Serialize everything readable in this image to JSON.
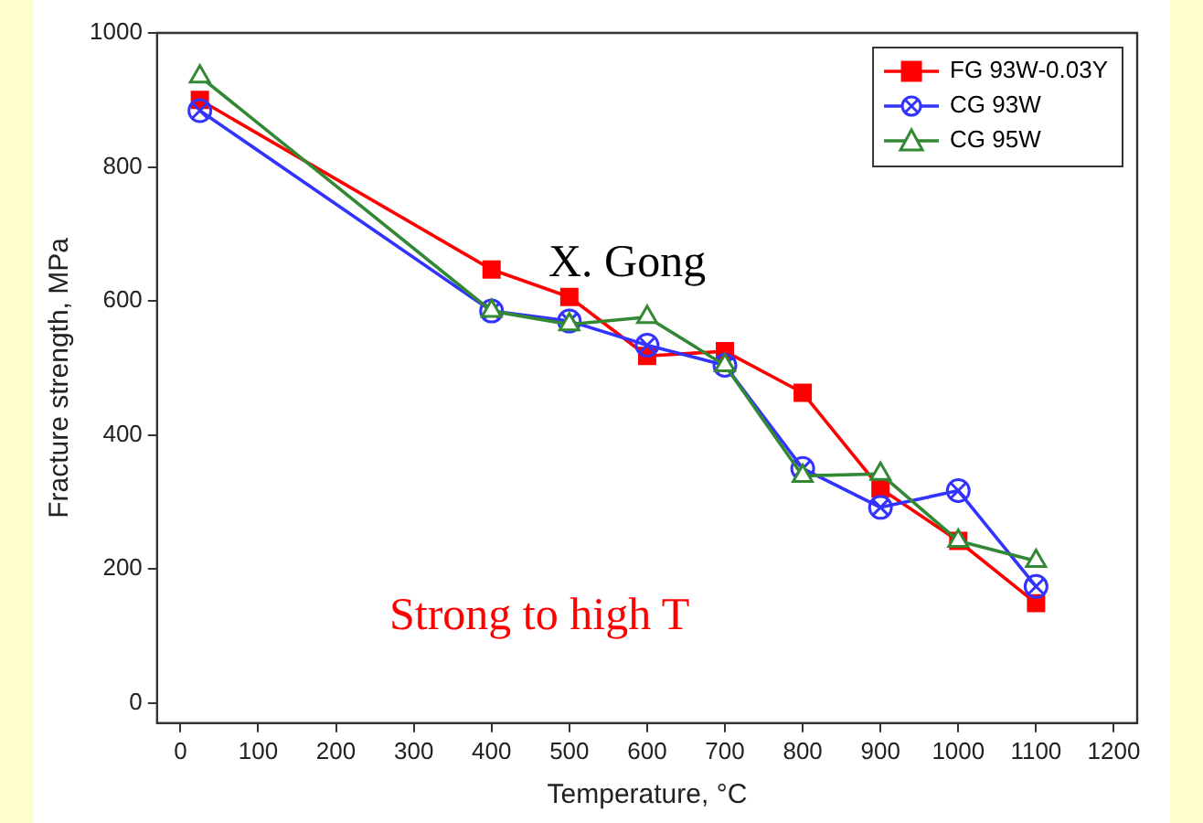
{
  "chart_data": {
    "type": "line",
    "xlabel": "Temperature, °C",
    "ylabel": "Fracture strength, MPa",
    "x": [
      25,
      400,
      500,
      600,
      700,
      800,
      900,
      1000,
      1100
    ],
    "series": [
      {
        "name": "FG 93W-0.03Y",
        "color": "#ff0000",
        "marker": "square",
        "values": [
          900,
          647,
          606,
          518,
          525,
          463,
          320,
          242,
          149
        ]
      },
      {
        "name": "CG 93W",
        "color": "#3333ff",
        "marker": "circle",
        "values": [
          884,
          585,
          570,
          534,
          504,
          350,
          292,
          317,
          174
        ]
      },
      {
        "name": "CG 95W",
        "color": "#338833",
        "marker": "triangle",
        "values": [
          935,
          585,
          565,
          576,
          504,
          339,
          342,
          242,
          212
        ]
      }
    ],
    "xlim": [
      -30,
      1230
    ],
    "xticks": [
      0,
      100,
      200,
      300,
      400,
      500,
      600,
      700,
      800,
      900,
      1000,
      1100,
      1200
    ],
    "ylim": [
      -30,
      1000
    ],
    "yticks": [
      0,
      200,
      400,
      600,
      800,
      1000
    ],
    "grid": false,
    "legend": "top right",
    "line_style": "solid",
    "annotations": [
      "X. Gong",
      "Strong to high T"
    ]
  }
}
